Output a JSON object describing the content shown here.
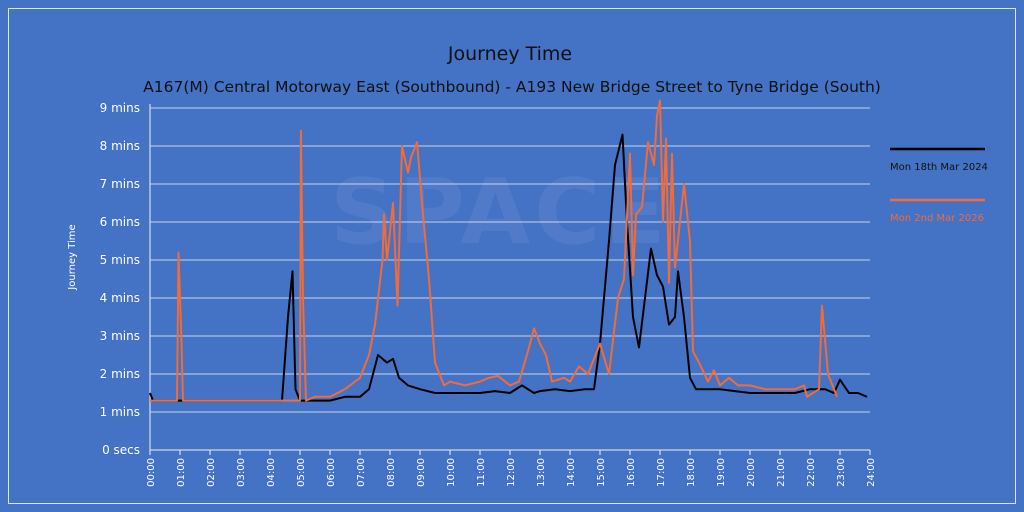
{
  "chart_data": {
    "type": "line",
    "title": "Journey Time",
    "subtitle": "A167(M) Central Motorway East (Southbound) - A193 New Bridge Street to Tyne Bridge (South)",
    "xlabel": "",
    "ylabel": "Journey Time",
    "xlim": [
      0,
      24
    ],
    "ylim": [
      0,
      9
    ],
    "x_unit": "hours of day",
    "y_unit": "minutes",
    "grid": true,
    "legend_position": "right",
    "x_ticks": [
      "00:00",
      "01:00",
      "02:00",
      "03:00",
      "04:00",
      "05:00",
      "06:00",
      "07:00",
      "08:00",
      "09:00",
      "10:00",
      "11:00",
      "12:00",
      "13:00",
      "14:00",
      "15:00",
      "16:00",
      "17:00",
      "18:00",
      "19:00",
      "20:00",
      "21:00",
      "22:00",
      "23:00",
      "24:00"
    ],
    "y_ticks": [
      "0 secs",
      "1 mins",
      "2 mins",
      "3 mins",
      "4 mins",
      "5 mins",
      "6 mins",
      "7 mins",
      "8 mins",
      "9 mins"
    ],
    "series": [
      {
        "name": "Mon 18th Mar 2024",
        "color": "#000000",
        "points": [
          [
            0,
            1.5
          ],
          [
            0.1,
            1.3
          ],
          [
            4.4,
            1.3
          ],
          [
            4.6,
            3.5
          ],
          [
            4.75,
            4.7
          ],
          [
            4.85,
            1.6
          ],
          [
            5,
            1.3
          ],
          [
            5.5,
            1.3
          ],
          [
            6,
            1.3
          ],
          [
            6.5,
            1.4
          ],
          [
            7,
            1.4
          ],
          [
            7.3,
            1.6
          ],
          [
            7.6,
            2.5
          ],
          [
            7.9,
            2.3
          ],
          [
            8.1,
            2.4
          ],
          [
            8.3,
            1.9
          ],
          [
            8.6,
            1.7
          ],
          [
            9,
            1.6
          ],
          [
            9.5,
            1.5
          ],
          [
            10,
            1.5
          ],
          [
            10.5,
            1.5
          ],
          [
            11,
            1.5
          ],
          [
            11.5,
            1.55
          ],
          [
            12,
            1.5
          ],
          [
            12.4,
            1.7
          ],
          [
            12.8,
            1.5
          ],
          [
            13,
            1.55
          ],
          [
            13.5,
            1.6
          ],
          [
            14,
            1.55
          ],
          [
            14.5,
            1.6
          ],
          [
            14.8,
            1.6
          ],
          [
            15,
            2.8
          ],
          [
            15.3,
            5.5
          ],
          [
            15.5,
            7.5
          ],
          [
            15.75,
            8.3
          ],
          [
            15.9,
            6
          ],
          [
            16.1,
            3.5
          ],
          [
            16.3,
            2.7
          ],
          [
            16.5,
            4
          ],
          [
            16.7,
            5.3
          ],
          [
            16.9,
            4.6
          ],
          [
            17.1,
            4.3
          ],
          [
            17.3,
            3.3
          ],
          [
            17.5,
            3.5
          ],
          [
            17.6,
            4.7
          ],
          [
            17.8,
            3.5
          ],
          [
            18,
            1.9
          ],
          [
            18.2,
            1.6
          ],
          [
            18.5,
            1.6
          ],
          [
            19,
            1.6
          ],
          [
            19.5,
            1.55
          ],
          [
            20,
            1.5
          ],
          [
            20.5,
            1.5
          ],
          [
            21,
            1.5
          ],
          [
            21.5,
            1.5
          ],
          [
            22,
            1.6
          ],
          [
            22.5,
            1.6
          ],
          [
            22.8,
            1.5
          ],
          [
            23,
            1.85
          ],
          [
            23.3,
            1.5
          ],
          [
            23.6,
            1.5
          ],
          [
            23.9,
            1.4
          ]
        ]
      },
      {
        "name": "Mon 2nd Mar 2026",
        "color": "#f26b38",
        "points": [
          [
            0,
            1.3
          ],
          [
            0.9,
            1.3
          ],
          [
            0.95,
            5.2
          ],
          [
            1.05,
            2.8
          ],
          [
            1.1,
            1.3
          ],
          [
            4.6,
            1.3
          ],
          [
            5,
            1.3
          ],
          [
            5.03,
            8.4
          ],
          [
            5.1,
            4.0
          ],
          [
            5.2,
            1.3
          ],
          [
            5.5,
            1.4
          ],
          [
            6,
            1.4
          ],
          [
            6.5,
            1.6
          ],
          [
            7,
            1.9
          ],
          [
            7.3,
            2.5
          ],
          [
            7.5,
            3.3
          ],
          [
            7.75,
            5.0
          ],
          [
            7.8,
            6.2
          ],
          [
            7.9,
            5
          ],
          [
            8.1,
            6.5
          ],
          [
            8.25,
            3.8
          ],
          [
            8.4,
            8.0
          ],
          [
            8.6,
            7.3
          ],
          [
            8.7,
            7.7
          ],
          [
            8.9,
            8.1
          ],
          [
            9.1,
            6.2
          ],
          [
            9.3,
            4.5
          ],
          [
            9.5,
            2.3
          ],
          [
            9.8,
            1.7
          ],
          [
            10,
            1.8
          ],
          [
            10.5,
            1.7
          ],
          [
            11,
            1.8
          ],
          [
            11.3,
            1.9
          ],
          [
            11.6,
            1.95
          ],
          [
            12,
            1.7
          ],
          [
            12.3,
            1.8
          ],
          [
            12.6,
            2.6
          ],
          [
            12.8,
            3.2
          ],
          [
            13,
            2.8
          ],
          [
            13.2,
            2.5
          ],
          [
            13.4,
            1.8
          ],
          [
            13.8,
            1.9
          ],
          [
            14,
            1.8
          ],
          [
            14.3,
            2.2
          ],
          [
            14.6,
            2.0
          ],
          [
            15,
            2.8
          ],
          [
            15.3,
            2.0
          ],
          [
            15.6,
            4.0
          ],
          [
            15.8,
            4.5
          ],
          [
            16,
            7.8
          ],
          [
            16.1,
            4.6
          ],
          [
            16.2,
            6.2
          ],
          [
            16.4,
            6.4
          ],
          [
            16.6,
            8.1
          ],
          [
            16.8,
            7.5
          ],
          [
            16.9,
            8.8
          ],
          [
            17,
            9.2
          ],
          [
            17.1,
            6.0
          ],
          [
            17.2,
            8.2
          ],
          [
            17.3,
            4.4
          ],
          [
            17.4,
            7.8
          ],
          [
            17.5,
            4.8
          ],
          [
            17.8,
            7.0
          ],
          [
            18,
            5.5
          ],
          [
            18.1,
            2.6
          ],
          [
            18.3,
            2.3
          ],
          [
            18.6,
            1.8
          ],
          [
            18.8,
            2.1
          ],
          [
            19,
            1.7
          ],
          [
            19.3,
            1.9
          ],
          [
            19.6,
            1.7
          ],
          [
            20,
            1.7
          ],
          [
            20.5,
            1.6
          ],
          [
            21,
            1.6
          ],
          [
            21.5,
            1.6
          ],
          [
            21.8,
            1.7
          ],
          [
            21.9,
            1.4
          ],
          [
            22.3,
            1.6
          ],
          [
            22.4,
            3.8
          ],
          [
            22.6,
            2.0
          ],
          [
            22.9,
            1.4
          ]
        ]
      }
    ]
  }
}
